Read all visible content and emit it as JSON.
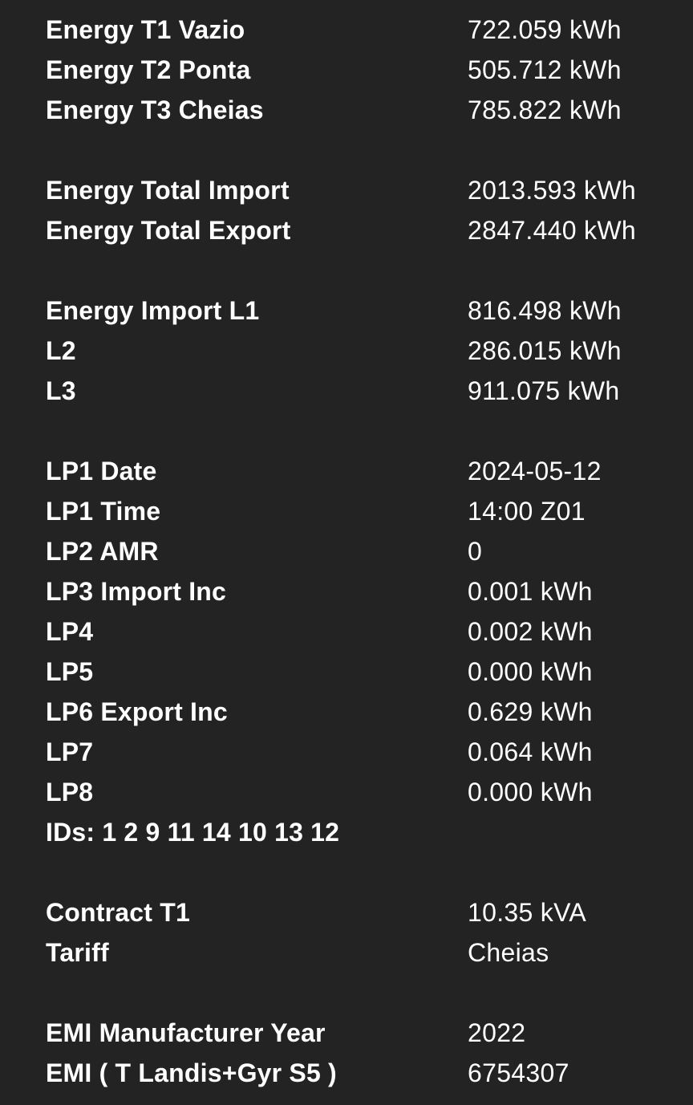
{
  "rows": [
    {
      "label": "Energy T1 Vazio",
      "value": "722.059 kWh"
    },
    {
      "label": "Energy T2 Ponta",
      "value": "505.712 kWh"
    },
    {
      "label": "Energy T3 Cheias",
      "value": "785.822 kWh"
    },
    {
      "label": "Energy Total Import",
      "value": "2013.593 kWh"
    },
    {
      "label": "Energy Total Export",
      "value": "2847.440 kWh"
    },
    {
      "label": "Energy Import L1",
      "value": "816.498 kWh"
    },
    {
      "label": "L2",
      "value": "286.015 kWh"
    },
    {
      "label": "L3",
      "value": "911.075 kWh"
    },
    {
      "label": "LP1 Date",
      "value": "2024-05-12"
    },
    {
      "label": "LP1 Time",
      "value": "14:00 Z01"
    },
    {
      "label": "LP2 AMR",
      "value": "0"
    },
    {
      "label": "LP3 Import Inc",
      "value": "0.001 kWh"
    },
    {
      "label": "LP4",
      "value": "0.002 kWh"
    },
    {
      "label": "LP5",
      "value": "0.000 kWh"
    },
    {
      "label": "LP6 Export Inc",
      "value": "0.629 kWh"
    },
    {
      "label": "LP7",
      "value": "0.064 kWh"
    },
    {
      "label": "LP8",
      "value": "0.000 kWh"
    },
    {
      "label": "IDs: 1 2 9 11 14 10 13 12",
      "value": ""
    },
    {
      "label": "Contract T1",
      "value": "10.35 kVA"
    },
    {
      "label": "Tariff",
      "value": "Cheias"
    },
    {
      "label": "EMI Manufacturer Year",
      "value": "2022"
    },
    {
      "label": "EMI ( T Landis+Gyr S5 )",
      "value": "6754307"
    }
  ]
}
